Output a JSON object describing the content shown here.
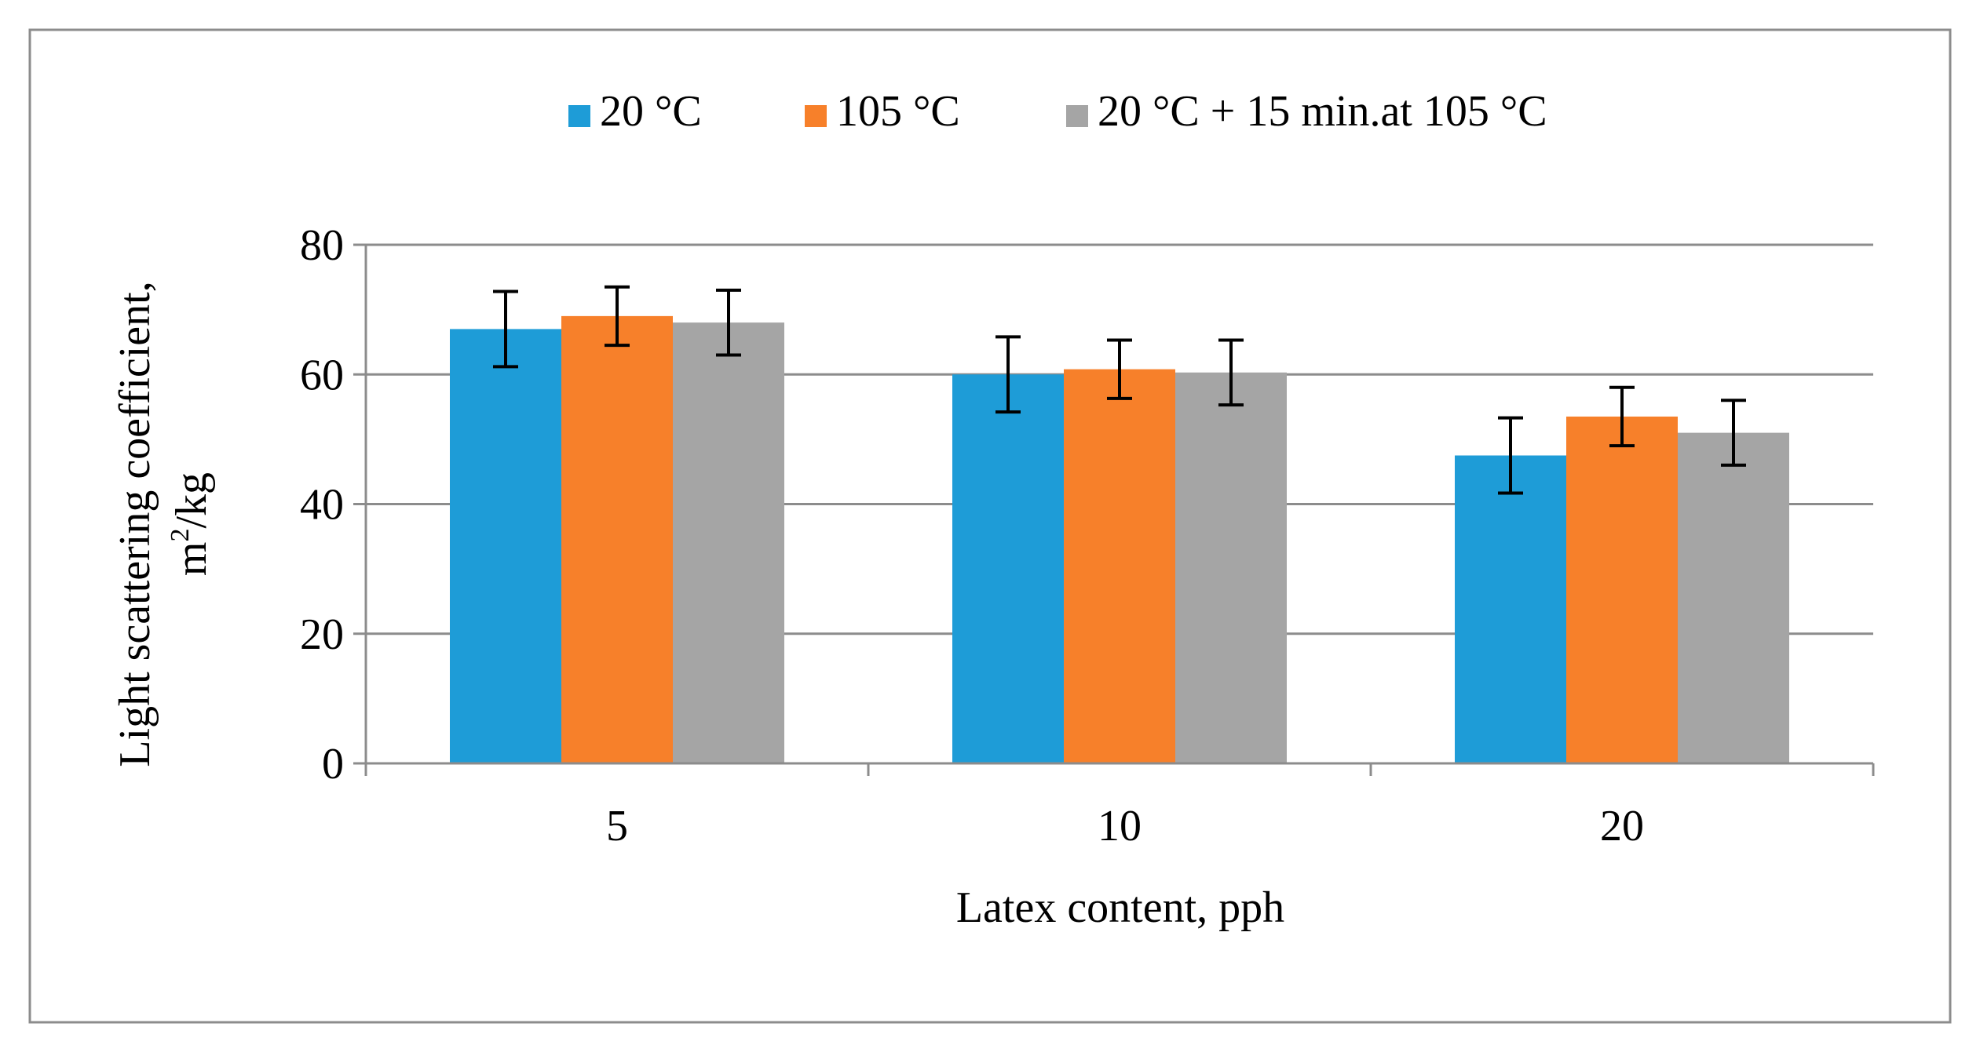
{
  "chart_data": {
    "type": "bar",
    "title": "",
    "xlabel": "Latex content, pph",
    "ylabel_line1": "Light scattering coefficient,",
    "ylabel_line2_base": "m",
    "ylabel_line2_sup": "2",
    "ylabel_line2_unit": "/kg",
    "categories": [
      "5",
      "10",
      "20"
    ],
    "ylim": [
      0,
      80
    ],
    "yticks": [
      0,
      20,
      40,
      60,
      80
    ],
    "grid": true,
    "legend_position": "top-center",
    "series": [
      {
        "name": "20 °C",
        "color": "#1e9cd7",
        "values": [
          67,
          60,
          47.5
        ],
        "error": [
          5.8,
          5.8,
          5.8
        ]
      },
      {
        "name": "105 °C",
        "color": "#f7802a",
        "values": [
          69,
          60.8,
          53.5
        ],
        "error": [
          4.5,
          4.5,
          4.5
        ]
      },
      {
        "name": "20 °C + 15 min.at 105 °C",
        "color": "#a5a5a5",
        "values": [
          68,
          60.3,
          51
        ],
        "error": [
          5.0,
          5.0,
          5.0
        ]
      }
    ]
  }
}
